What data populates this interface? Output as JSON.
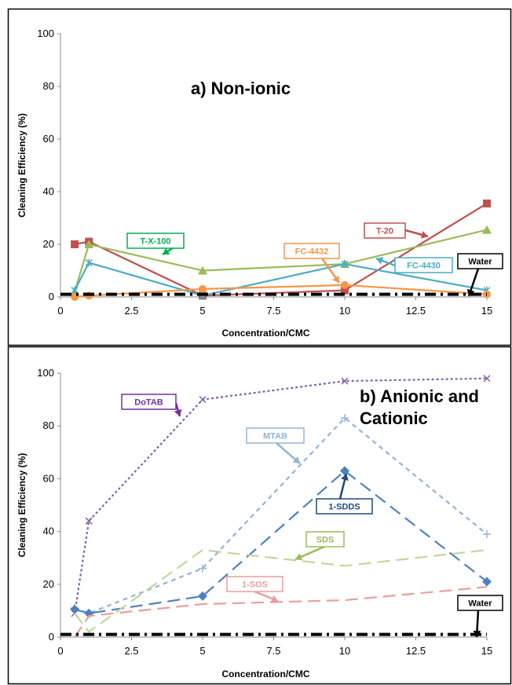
{
  "chart_data": [
    {
      "type": "line",
      "title": "a) Non-ionic",
      "xlabel": "Concentration/CMC",
      "ylabel": "Cleaning Efficiency (%)",
      "xlim": [
        0,
        15
      ],
      "ylim": [
        0,
        100
      ],
      "xticks": [
        "0",
        "2.5",
        "5",
        "7.5",
        "10",
        "12.5",
        "15"
      ],
      "yticks": [
        "0",
        "20",
        "40",
        "60",
        "80",
        "100"
      ],
      "grid": false,
      "legend": "callout labels",
      "series": [
        {
          "name": "T-20",
          "color": "#c0504d",
          "marker": "square",
          "dash": "solid",
          "x": [
            0.5,
            1,
            5,
            10,
            15
          ],
          "y": [
            20,
            21,
            0.5,
            2.5,
            35.5
          ]
        },
        {
          "name": "T-X-100",
          "color": "#9bbb59",
          "marker": "triangle",
          "dash": "solid",
          "x": [
            0.5,
            1,
            5,
            10,
            15
          ],
          "y": [
            2,
            20,
            10,
            12.5,
            25.5
          ]
        },
        {
          "name": "FC-4430",
          "color": "#4bacc6",
          "marker": "star",
          "dash": "solid",
          "x": [
            0.5,
            1,
            5,
            10,
            15
          ],
          "y": [
            2.5,
            13,
            0.5,
            12.5,
            2.5
          ]
        },
        {
          "name": "FC-4432",
          "color": "#f79646",
          "marker": "circle",
          "dash": "solid",
          "x": [
            0.5,
            1,
            5,
            10,
            15
          ],
          "y": [
            0,
            0.5,
            3,
            4.5,
            1
          ]
        },
        {
          "name": "Water",
          "color": "#000000",
          "marker": "none",
          "dash": "dashdot",
          "x": [
            0,
            15
          ],
          "y": [
            1,
            1
          ]
        }
      ],
      "callouts": [
        {
          "text": "T-X-100",
          "color": "#00b050"
        },
        {
          "text": "T-20",
          "color": "#c0504d"
        },
        {
          "text": "FC-4432",
          "color": "#f79646"
        },
        {
          "text": "FC-4430",
          "color": "#4bacc6"
        },
        {
          "text": "Water",
          "color": "#000000"
        }
      ]
    },
    {
      "type": "line",
      "title": "b) Anionic and Cationic",
      "title_lines": [
        "b) Anionic and",
        "Cationic"
      ],
      "xlabel": "Concentration/CMC",
      "ylabel": "Cleaning Efficiency (%)",
      "xlim": [
        0,
        15
      ],
      "ylim": [
        0,
        100
      ],
      "xticks": [
        "0",
        "2.5",
        "5",
        "7.5",
        "10",
        "12.5",
        "15"
      ],
      "yticks": [
        "0",
        "20",
        "40",
        "60",
        "80",
        "100"
      ],
      "grid": false,
      "legend": "callout labels",
      "series": [
        {
          "name": "DoTAB",
          "color": "#8064a2",
          "marker": "x",
          "dash": "dotted",
          "x": [
            0.5,
            1,
            5,
            10,
            15
          ],
          "y": [
            9,
            44,
            90,
            97,
            98
          ]
        },
        {
          "name": "MTAB",
          "color": "#95b3d7",
          "marker": "plus",
          "dash": "dashed",
          "x": [
            0.5,
            1,
            5,
            10,
            15
          ],
          "y": [
            11,
            9,
            26,
            83,
            39
          ]
        },
        {
          "name": "1-SDDS",
          "color": "#4f81bd",
          "marker": "diamond",
          "dash": "longdash",
          "x": [
            0.5,
            1,
            5,
            10,
            15
          ],
          "y": [
            10.5,
            9,
            15.5,
            63,
            21
          ]
        },
        {
          "name": "SDS",
          "color": "#c3d69b",
          "marker": "none",
          "dash": "longdash",
          "x": [
            0.5,
            1,
            5,
            10,
            15
          ],
          "y": [
            9,
            2,
            33,
            27,
            33
          ]
        },
        {
          "name": "1-SOS",
          "color": "#e6a09c",
          "marker": "none",
          "dash": "longdash",
          "x": [
            0.5,
            1,
            5,
            10,
            15
          ],
          "y": [
            0,
            8,
            12.5,
            14,
            19
          ]
        },
        {
          "name": "Water",
          "color": "#000000",
          "marker": "none",
          "dash": "dashdot",
          "x": [
            0,
            15
          ],
          "y": [
            1,
            1
          ]
        }
      ],
      "callouts": [
        {
          "text": "DoTAB",
          "color": "#7030a0"
        },
        {
          "text": "MTAB",
          "color": "#95b3d7"
        },
        {
          "text": "1-SDDS",
          "color": "#1f497d"
        },
        {
          "text": "SDS",
          "color": "#9bbb59"
        },
        {
          "text": "1-SOS",
          "color": "#e6a09c"
        },
        {
          "text": "Water",
          "color": "#000000"
        }
      ]
    }
  ]
}
